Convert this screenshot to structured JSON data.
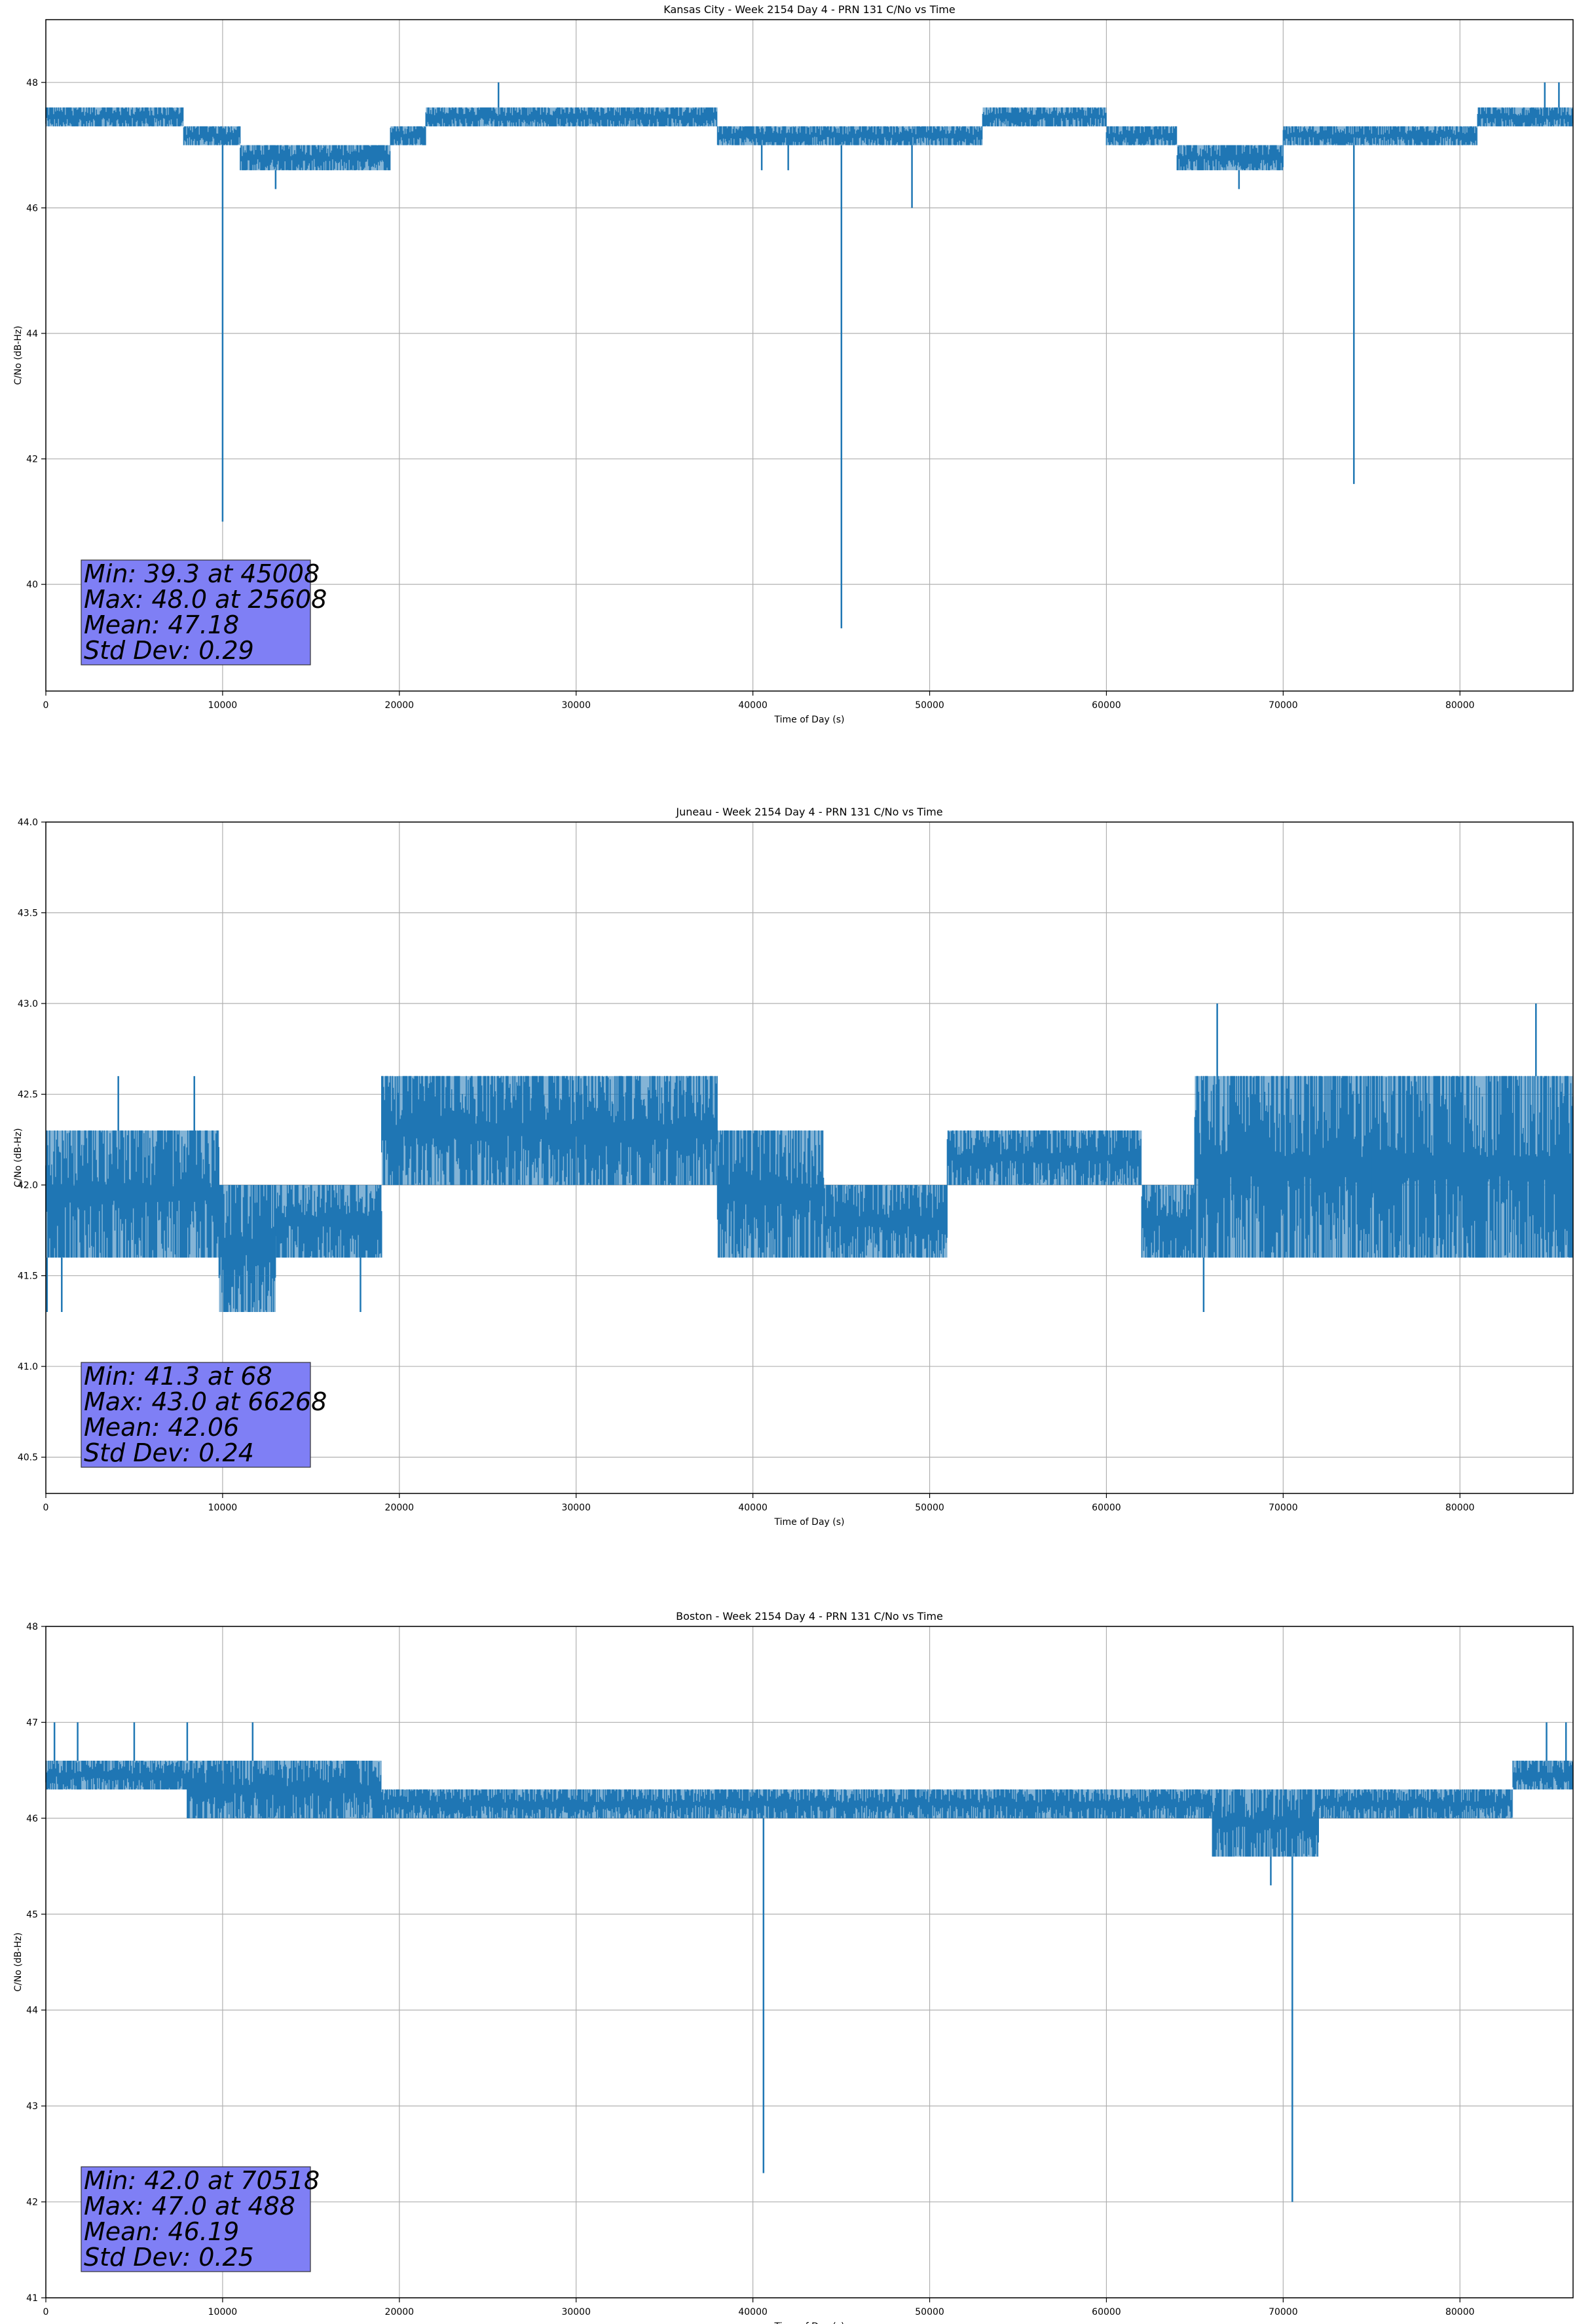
{
  "chart_data": [
    {
      "type": "line",
      "title": "Kansas City - Week 2154 Day 4 - PRN 131 C/No vs Time",
      "xlabel": "Time of Day (s)",
      "ylabel": "C/No (dB-Hz)",
      "xlim": [
        0,
        86400
      ],
      "ylim": [
        38.3,
        49.0
      ],
      "xticks": [
        0,
        10000,
        20000,
        30000,
        40000,
        50000,
        60000,
        70000,
        80000
      ],
      "yticks": [
        40,
        42,
        44,
        46,
        48
      ],
      "grid": true,
      "series_color": "#1f77b4",
      "stats": [
        "Min: 39.3 at 45008",
        "Max: 48.0 at 25608",
        "Mean: 47.18",
        "Std Dev: 0.29"
      ],
      "segments": [
        {
          "x0": 0,
          "x1": 7800,
          "lo": 47.3,
          "hi": 47.6
        },
        {
          "x0": 7800,
          "x1": 11000,
          "lo": 47.0,
          "hi": 47.3
        },
        {
          "x0": 11000,
          "x1": 19500,
          "lo": 46.6,
          "hi": 47.0
        },
        {
          "x0": 19500,
          "x1": 21500,
          "lo": 47.0,
          "hi": 47.3
        },
        {
          "x0": 21500,
          "x1": 38000,
          "lo": 47.3,
          "hi": 47.6
        },
        {
          "x0": 38000,
          "x1": 53000,
          "lo": 47.0,
          "hi": 47.3
        },
        {
          "x0": 53000,
          "x1": 60000,
          "lo": 47.3,
          "hi": 47.6
        },
        {
          "x0": 60000,
          "x1": 64000,
          "lo": 47.0,
          "hi": 47.3
        },
        {
          "x0": 64000,
          "x1": 70000,
          "lo": 46.6,
          "hi": 47.0
        },
        {
          "x0": 70000,
          "x1": 81000,
          "lo": 47.0,
          "hi": 47.3
        },
        {
          "x0": 81000,
          "x1": 86400,
          "lo": 47.3,
          "hi": 47.6
        }
      ],
      "spikes": [
        {
          "x": 10000,
          "y": 41.0
        },
        {
          "x": 13000,
          "y": 46.3
        },
        {
          "x": 25608,
          "y": 48.0
        },
        {
          "x": 40500,
          "y": 46.6
        },
        {
          "x": 42000,
          "y": 46.6
        },
        {
          "x": 45008,
          "y": 39.3
        },
        {
          "x": 49000,
          "y": 46.0
        },
        {
          "x": 67500,
          "y": 46.3
        },
        {
          "x": 74000,
          "y": 41.6
        },
        {
          "x": 84800,
          "y": 48.0
        },
        {
          "x": 85600,
          "y": 48.0
        }
      ]
    },
    {
      "type": "line",
      "title": "Juneau - Week 2154 Day 4 - PRN 131 C/No vs Time",
      "xlabel": "Time of Day (s)",
      "ylabel": "C/No (dB-Hz)",
      "xlim": [
        0,
        86400
      ],
      "ylim": [
        40.3,
        44.0
      ],
      "xticks": [
        0,
        10000,
        20000,
        30000,
        40000,
        50000,
        60000,
        70000,
        80000
      ],
      "yticks": [
        40.5,
        41.0,
        41.5,
        42.0,
        42.5,
        43.0,
        43.5,
        44.0
      ],
      "grid": true,
      "series_color": "#1f77b4",
      "stats": [
        "Min: 41.3 at 68",
        "Max: 43.0 at 66268",
        "Mean: 42.06",
        "Std Dev: 0.24"
      ],
      "segments": [
        {
          "x0": 0,
          "x1": 9800,
          "lo": 41.6,
          "hi": 42.3
        },
        {
          "x0": 9800,
          "x1": 13000,
          "lo": 41.3,
          "hi": 42.0
        },
        {
          "x0": 13000,
          "x1": 19000,
          "lo": 41.6,
          "hi": 42.0
        },
        {
          "x0": 19000,
          "x1": 38000,
          "lo": 42.0,
          "hi": 42.6
        },
        {
          "x0": 38000,
          "x1": 44000,
          "lo": 41.6,
          "hi": 42.3
        },
        {
          "x0": 44000,
          "x1": 51000,
          "lo": 41.6,
          "hi": 42.0
        },
        {
          "x0": 51000,
          "x1": 62000,
          "lo": 42.0,
          "hi": 42.3
        },
        {
          "x0": 62000,
          "x1": 65000,
          "lo": 41.6,
          "hi": 42.0
        },
        {
          "x0": 65000,
          "x1": 75000,
          "lo": 41.6,
          "hi": 42.6
        },
        {
          "x0": 75000,
          "x1": 86400,
          "lo": 41.6,
          "hi": 42.6
        }
      ],
      "spikes": [
        {
          "x": 68,
          "y": 41.3
        },
        {
          "x": 900,
          "y": 41.3
        },
        {
          "x": 4100,
          "y": 42.6
        },
        {
          "x": 8400,
          "y": 42.6
        },
        {
          "x": 17800,
          "y": 41.3
        },
        {
          "x": 65500,
          "y": 41.3
        },
        {
          "x": 66268,
          "y": 43.0
        },
        {
          "x": 84300,
          "y": 43.0
        }
      ]
    },
    {
      "type": "line",
      "title": "Boston - Week 2154 Day 4 - PRN 131 C/No vs Time",
      "xlabel": "Time of Day (s)",
      "ylabel": "C/No (dB-Hz)",
      "xlim": [
        0,
        86400
      ],
      "ylim": [
        41.0,
        48.0
      ],
      "xticks": [
        0,
        10000,
        20000,
        30000,
        40000,
        50000,
        60000,
        70000,
        80000
      ],
      "yticks": [
        41,
        42,
        43,
        44,
        45,
        46,
        47,
        48
      ],
      "grid": true,
      "series_color": "#1f77b4",
      "stats": [
        "Min: 42.0 at 70518",
        "Max: 47.0 at 488",
        "Mean: 46.19",
        "Std Dev: 0.25"
      ],
      "segments": [
        {
          "x0": 0,
          "x1": 8000,
          "lo": 46.3,
          "hi": 46.6
        },
        {
          "x0": 8000,
          "x1": 19000,
          "lo": 46.0,
          "hi": 46.6
        },
        {
          "x0": 19000,
          "x1": 40000,
          "lo": 46.0,
          "hi": 46.3
        },
        {
          "x0": 40000,
          "x1": 66000,
          "lo": 46.0,
          "hi": 46.3
        },
        {
          "x0": 66000,
          "x1": 72000,
          "lo": 45.6,
          "hi": 46.3
        },
        {
          "x0": 72000,
          "x1": 83000,
          "lo": 46.0,
          "hi": 46.3
        },
        {
          "x0": 83000,
          "x1": 86400,
          "lo": 46.3,
          "hi": 46.6
        }
      ],
      "spikes": [
        {
          "x": 488,
          "y": 47.0
        },
        {
          "x": 1800,
          "y": 47.0
        },
        {
          "x": 5000,
          "y": 47.0
        },
        {
          "x": 8000,
          "y": 47.0
        },
        {
          "x": 11700,
          "y": 47.0
        },
        {
          "x": 40600,
          "y": 42.3
        },
        {
          "x": 69300,
          "y": 45.3
        },
        {
          "x": 70518,
          "y": 42.0
        },
        {
          "x": 84900,
          "y": 47.0
        },
        {
          "x": 86000,
          "y": 47.0
        }
      ]
    }
  ]
}
